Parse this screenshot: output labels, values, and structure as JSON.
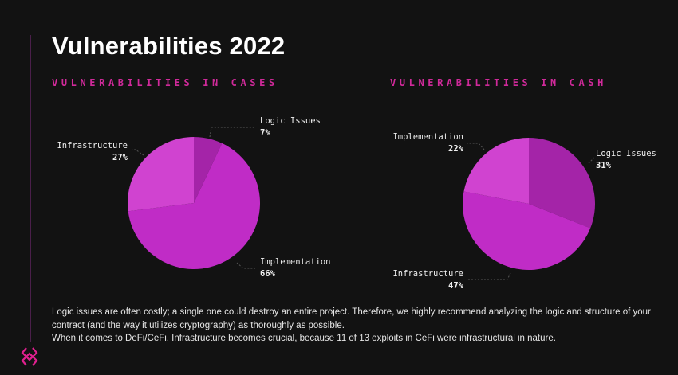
{
  "title": "Vulnerabilities 2022",
  "chart_data": [
    {
      "type": "pie",
      "title": "VULNERABILITIES IN CASES",
      "categories": [
        "Logic Issues",
        "Implementation",
        "Infrastructure"
      ],
      "values": [
        7,
        66,
        27
      ],
      "labels": [
        "7%",
        "66%",
        "27%"
      ],
      "colors": [
        "#a424a8",
        "#c02cc6",
        "#d043d0"
      ],
      "start": "12 o'clock, clockwise"
    },
    {
      "type": "pie",
      "title": "VULNERABILITIES IN CASH",
      "categories": [
        "Logic Issues",
        "Infrastructure",
        "Implementation"
      ],
      "values": [
        31,
        47,
        22
      ],
      "labels": [
        "31%",
        "47%",
        "22%"
      ],
      "colors": [
        "#a424a8",
        "#c02cc6",
        "#d043d0"
      ],
      "start": "12 o'clock, clockwise"
    }
  ],
  "note": {
    "line1": "Logic issues are often costly; a single one could destroy an entire project. Therefore, we highly recommend analyzing the logic and structure of your contract (and the way it utilizes cryptography) as thoroughly as possible.",
    "line2": "When it comes to DeFi/CeFi, Infrastructure becomes crucial, because 11 of 13 exploits in CeFi were infrastructural in nature."
  },
  "accent": "#e0208f",
  "logo_icon": "brand-logo-icon"
}
